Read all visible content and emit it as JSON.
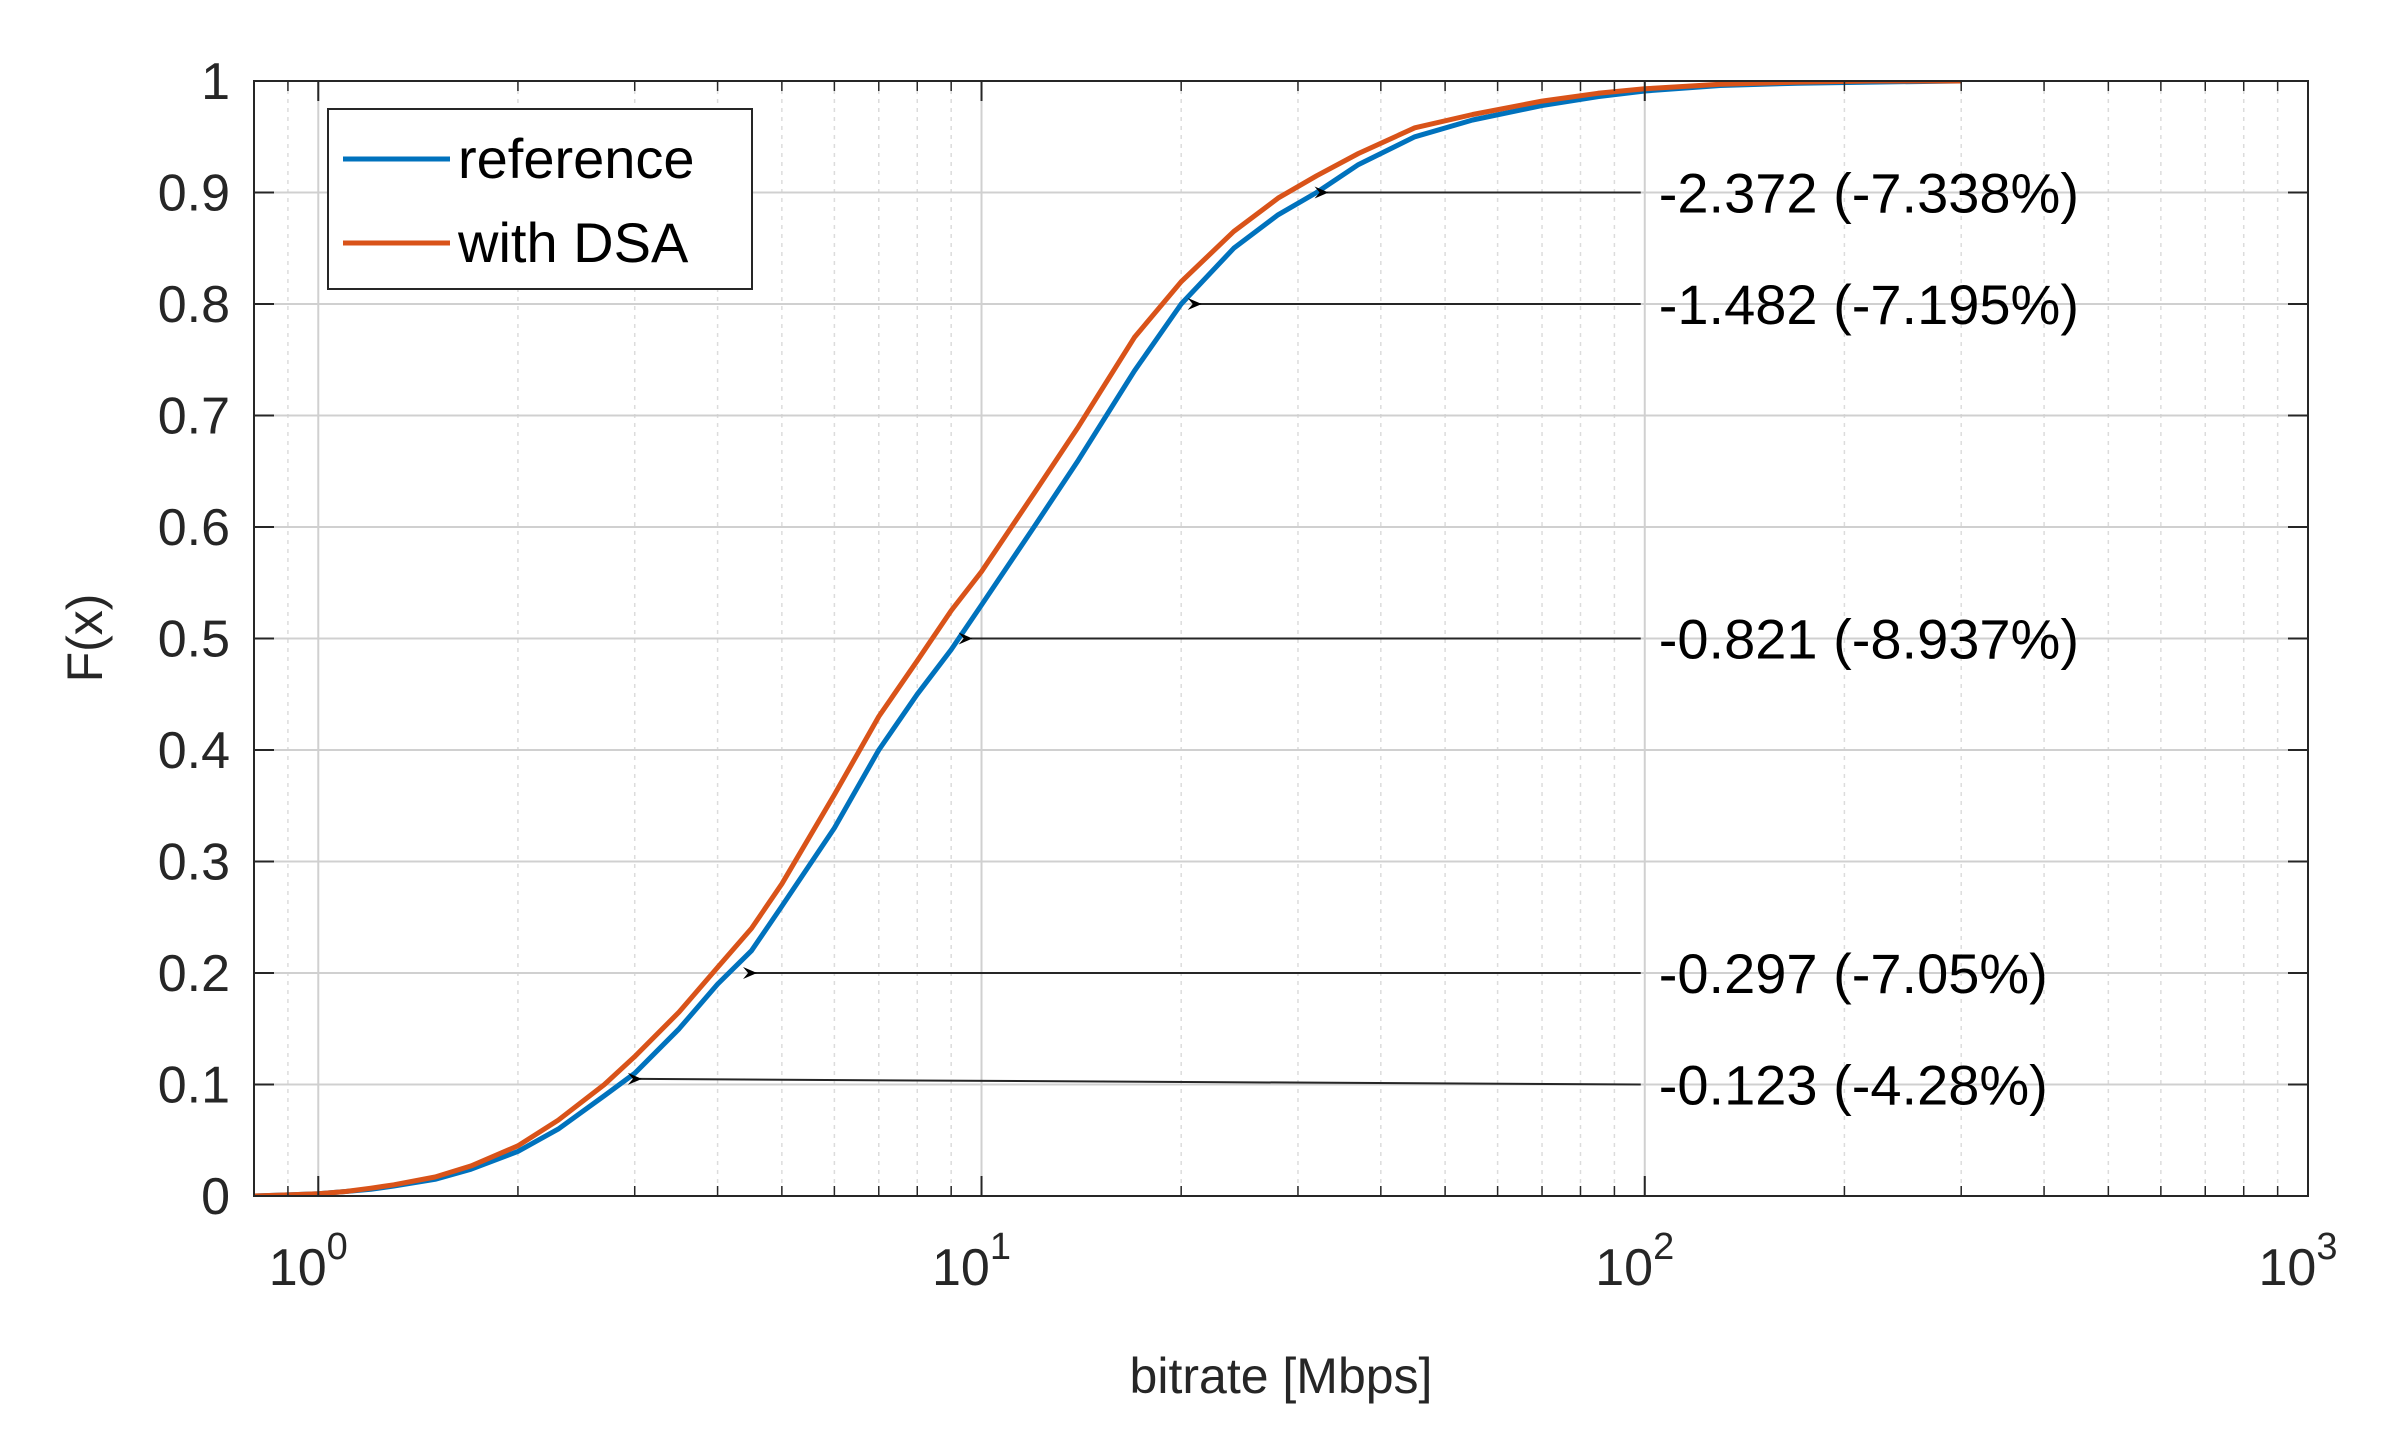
{
  "chart_data": {
    "type": "line",
    "xscale": "log",
    "xlabel": "bitrate [Mbps]",
    "ylabel": "F(x)",
    "xlim": [
      0.8,
      1000
    ],
    "ylim": [
      0,
      1
    ],
    "grid": true,
    "legend_position": "top-left",
    "x_ticks": [
      {
        "value": 1,
        "base": "10",
        "exp": "0"
      },
      {
        "value": 10,
        "base": "10",
        "exp": "1"
      },
      {
        "value": 100,
        "base": "10",
        "exp": "2"
      },
      {
        "value": 1000,
        "base": "10",
        "exp": "3"
      }
    ],
    "y_ticks": [
      {
        "value": 0,
        "label": "0"
      },
      {
        "value": 0.1,
        "label": "0.1"
      },
      {
        "value": 0.2,
        "label": "0.2"
      },
      {
        "value": 0.3,
        "label": "0.3"
      },
      {
        "value": 0.4,
        "label": "0.4"
      },
      {
        "value": 0.5,
        "label": "0.5"
      },
      {
        "value": 0.6,
        "label": "0.6"
      },
      {
        "value": 0.7,
        "label": "0.7"
      },
      {
        "value": 0.8,
        "label": "0.8"
      },
      {
        "value": 0.9,
        "label": "0.9"
      },
      {
        "value": 1,
        "label": "1"
      }
    ],
    "series": [
      {
        "name": "reference",
        "color": "#0072BD",
        "x": [
          0.8,
          0.9,
          1.0,
          1.1,
          1.2,
          1.3,
          1.5,
          1.7,
          2.0,
          2.3,
          2.7,
          3.0,
          3.5,
          4.0,
          4.5,
          5.0,
          6.0,
          7.0,
          8.0,
          9.0,
          10.0,
          12.0,
          14.0,
          17.0,
          20.0,
          24.0,
          28.0,
          32.0,
          37.0,
          45.0,
          55.0,
          70.0,
          85.0,
          100.0,
          130.0,
          170.0,
          220.0,
          300.0
        ],
        "y": [
          0,
          0.001,
          0.002,
          0.004,
          0.006,
          0.009,
          0.015,
          0.024,
          0.04,
          0.06,
          0.09,
          0.11,
          0.15,
          0.19,
          0.22,
          0.26,
          0.33,
          0.4,
          0.45,
          0.49,
          0.53,
          0.6,
          0.66,
          0.74,
          0.8,
          0.85,
          0.88,
          0.9,
          0.925,
          0.95,
          0.965,
          0.978,
          0.986,
          0.991,
          0.996,
          0.998,
          0.999,
          1.0
        ]
      },
      {
        "name": "with DSA",
        "color": "#D95319",
        "x": [
          0.8,
          0.9,
          1.0,
          1.1,
          1.2,
          1.3,
          1.5,
          1.7,
          2.0,
          2.3,
          2.7,
          3.0,
          3.5,
          4.0,
          4.5,
          5.0,
          6.0,
          7.0,
          8.0,
          9.0,
          10.0,
          12.0,
          14.0,
          17.0,
          20.0,
          24.0,
          28.0,
          32.0,
          37.0,
          45.0,
          55.0,
          70.0,
          85.0,
          100.0,
          130.0,
          170.0,
          220.0,
          300.0
        ],
        "y": [
          0,
          0.001,
          0.002,
          0.004,
          0.007,
          0.01,
          0.017,
          0.027,
          0.045,
          0.068,
          0.1,
          0.125,
          0.165,
          0.205,
          0.24,
          0.28,
          0.36,
          0.43,
          0.48,
          0.525,
          0.56,
          0.63,
          0.69,
          0.77,
          0.82,
          0.865,
          0.895,
          0.915,
          0.935,
          0.958,
          0.97,
          0.982,
          0.989,
          0.993,
          0.997,
          0.999,
          1.0,
          1.0
        ]
      }
    ],
    "annotations": [
      {
        "text": "-2.372 (-7.338%)",
        "point_x": 32.0,
        "point_y": 0.9,
        "text_y": 0.9
      },
      {
        "text": "-1.482 (-7.195%)",
        "point_x": 20.6,
        "point_y": 0.8,
        "text_y": 0.8
      },
      {
        "text": "-0.821 (-8.937%)",
        "point_x": 9.3,
        "point_y": 0.5,
        "text_y": 0.5
      },
      {
        "text": "-0.297 (-7.05%)",
        "point_x": 4.4,
        "point_y": 0.2,
        "text_y": 0.2
      },
      {
        "text": "-0.123 (-4.28%)",
        "point_x": 2.95,
        "point_y": 0.105,
        "text_y": 0.1
      }
    ]
  }
}
